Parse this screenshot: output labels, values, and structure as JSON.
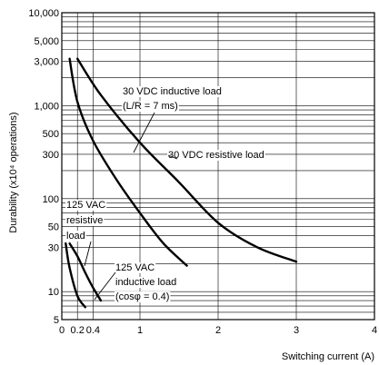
{
  "chart_data": {
    "type": "line",
    "title": "",
    "xlabel": "Switching current (A)",
    "ylabel": "Durability (x10⁴ operations)",
    "x_scale": "linear",
    "y_scale": "log",
    "xlim": [
      0,
      4
    ],
    "ylim": [
      5,
      10000
    ],
    "grid": true,
    "x_ticks": [
      0,
      0.2,
      0.4,
      1,
      2,
      3,
      4
    ],
    "x_tick_labels": [
      "0",
      "0.2",
      "0.4",
      "1",
      "2",
      "3",
      "4"
    ],
    "y_ticks": [
      5,
      10,
      30,
      50,
      100,
      300,
      500,
      1000,
      3000,
      5000,
      10000
    ],
    "y_tick_labels": [
      "5",
      "10",
      "30",
      "50",
      "100",
      "300",
      "500",
      "1,000",
      "3,000",
      "5,000",
      "10,000"
    ],
    "series": [
      {
        "name": "30 VDC resistive load",
        "points": [
          [
            0.2,
            3200
          ],
          [
            0.5,
            1300
          ],
          [
            1.0,
            400
          ],
          [
            1.5,
            150
          ],
          [
            2.0,
            55
          ],
          [
            2.5,
            30
          ],
          [
            3.0,
            21
          ]
        ]
      },
      {
        "name": "30 VDC inductive load (L/R = 7 ms)",
        "points": [
          [
            0.1,
            3200
          ],
          [
            0.2,
            1100
          ],
          [
            0.4,
            420
          ],
          [
            0.7,
            160
          ],
          [
            1.0,
            70
          ],
          [
            1.3,
            33
          ],
          [
            1.6,
            19
          ]
        ]
      },
      {
        "name": "125 VAC resistive load",
        "points": [
          [
            0.1,
            33
          ],
          [
            0.2,
            24
          ],
          [
            0.3,
            16
          ],
          [
            0.4,
            11
          ],
          [
            0.5,
            8
          ]
        ]
      },
      {
        "name": "125 VAC inductive load (cosφ = 0.4)",
        "points": [
          [
            0.05,
            33
          ],
          [
            0.1,
            18
          ],
          [
            0.2,
            9
          ],
          [
            0.3,
            6.8
          ]
        ]
      }
    ],
    "annotations": [
      {
        "text": "30 VDC inductive load"
      },
      {
        "text": "(L/R = 7 ms)"
      },
      {
        "text": "30 VDC resistive load"
      },
      {
        "text": "125 VAC"
      },
      {
        "text": "resistive"
      },
      {
        "text": "load"
      },
      {
        "text": "125 VAC"
      },
      {
        "text": "inductive load"
      },
      {
        "text": "(cosφ = 0.4)"
      }
    ]
  }
}
